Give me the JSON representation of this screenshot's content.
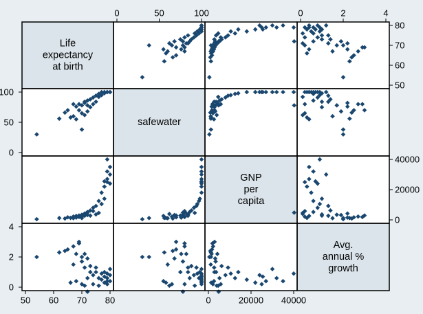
{
  "colors": {
    "background": "#e8eef2",
    "plot_background": "#ffffff",
    "diagonal_fill": "#dae4ea",
    "marker": "#1a476f",
    "frame": "#000000"
  },
  "chart_data": {
    "type": "scatter",
    "subtype": "scatter-matrix",
    "grid": false,
    "marker_shape": "diamond",
    "variables": [
      {
        "key": "lexp",
        "label": [
          "Life",
          "expectancy",
          "at birth"
        ],
        "range": [
          50,
          80
        ],
        "ticks": [
          50,
          60,
          70,
          80
        ],
        "tick_labels": [
          "50",
          "60",
          "70",
          "80"
        ]
      },
      {
        "key": "safewater",
        "label": [
          "safewater"
        ],
        "range": [
          0,
          100
        ],
        "ticks": [
          0,
          50,
          100
        ],
        "tick_labels": [
          "0",
          "50",
          "100"
        ]
      },
      {
        "key": "gnppc",
        "label": [
          "GNP",
          "per",
          "capita"
        ],
        "range": [
          0,
          40000
        ],
        "ticks": [
          0,
          20000,
          40000
        ],
        "tick_labels": [
          "0",
          "20000",
          "40000"
        ]
      },
      {
        "key": "popgrowth",
        "label": [
          "Avg.",
          "annual %",
          "growth"
        ],
        "range": [
          0,
          4
        ],
        "ticks": [
          0,
          2,
          4
        ],
        "tick_labels": [
          "0",
          "2",
          "4"
        ]
      }
    ],
    "axis_placement": {
      "top": [
        "safewater",
        "popgrowth"
      ],
      "bottom": [
        "lexp",
        "gnppc"
      ],
      "left": [
        "safewater",
        "popgrowth"
      ],
      "right": [
        "lexp",
        "gnppc"
      ]
    },
    "observations": [
      {
        "lexp": 54,
        "safewater": 30,
        "gnppc": 450,
        "popgrowth": 2.0
      },
      {
        "lexp": 62,
        "safewater": 56,
        "gnppc": 1200,
        "popgrowth": 2.3
      },
      {
        "lexp": 64,
        "safewater": 66,
        "gnppc": 900,
        "popgrowth": 2.4
      },
      {
        "lexp": 65,
        "safewater": 70,
        "gnppc": 1700,
        "popgrowth": 2.5
      },
      {
        "lexp": 66,
        "safewater": 58,
        "gnppc": 1300,
        "popgrowth": 0.3
      },
      {
        "lexp": 67,
        "safewater": 60,
        "gnppc": 1100,
        "popgrowth": 1.5
      },
      {
        "lexp": 67,
        "safewater": 80,
        "gnppc": 2200,
        "popgrowth": 2.7
      },
      {
        "lexp": 68,
        "safewater": 76,
        "gnppc": 1500,
        "popgrowth": 2.2
      },
      {
        "lexp": 68,
        "safewater": 55,
        "gnppc": 2600,
        "popgrowth": 0.4
      },
      {
        "lexp": 69,
        "safewater": 80,
        "gnppc": 1900,
        "popgrowth": 2.9
      },
      {
        "lexp": 69,
        "safewater": 70,
        "gnppc": 2900,
        "popgrowth": 3.0
      },
      {
        "lexp": 70,
        "safewater": 38,
        "gnppc": 1200,
        "popgrowth": 2.0
      },
      {
        "lexp": 70,
        "safewater": 78,
        "gnppc": 3400,
        "popgrowth": 1.7
      },
      {
        "lexp": 70,
        "safewater": 65,
        "gnppc": 2100,
        "popgrowth": 0.2
      },
      {
        "lexp": 71,
        "safewater": 84,
        "gnppc": 2700,
        "popgrowth": 1.3
      },
      {
        "lexp": 71,
        "safewater": 62,
        "gnppc": 3900,
        "popgrowth": 0.1
      },
      {
        "lexp": 71,
        "safewater": 82,
        "gnppc": 4200,
        "popgrowth": 2.2
      },
      {
        "lexp": 72,
        "safewater": 78,
        "gnppc": 4800,
        "popgrowth": -0.3
      },
      {
        "lexp": 72,
        "safewater": 86,
        "gnppc": 5200,
        "popgrowth": 0.6
      },
      {
        "lexp": 72,
        "safewater": 68,
        "gnppc": 3200,
        "popgrowth": 1.9
      },
      {
        "lexp": 73,
        "safewater": 88,
        "gnppc": 6200,
        "popgrowth": 1.4
      },
      {
        "lexp": 73,
        "safewater": 75,
        "gnppc": 2800,
        "popgrowth": 1.0
      },
      {
        "lexp": 74,
        "safewater": 80,
        "gnppc": 5800,
        "popgrowth": 0.2
      },
      {
        "lexp": 74,
        "safewater": 91,
        "gnppc": 8000,
        "popgrowth": 0.8
      },
      {
        "lexp": 75,
        "safewater": 94,
        "gnppc": 9200,
        "popgrowth": 1.3
      },
      {
        "lexp": 75,
        "safewater": 84,
        "gnppc": 3600,
        "popgrowth": 1.0
      },
      {
        "lexp": 76,
        "safewater": 97,
        "gnppc": 12500,
        "popgrowth": 0.6
      },
      {
        "lexp": 76,
        "safewater": 92,
        "gnppc": 4600,
        "popgrowth": 0.1
      },
      {
        "lexp": 77,
        "safewater": 100,
        "gnppc": 18000,
        "popgrowth": 0.5
      },
      {
        "lexp": 77,
        "safewater": 95,
        "gnppc": 10500,
        "popgrowth": 0.9
      },
      {
        "lexp": 78,
        "safewater": 100,
        "gnppc": 22000,
        "popgrowth": 0.3
      },
      {
        "lexp": 78,
        "safewater": 100,
        "gnppc": 25500,
        "popgrowth": 0.7
      },
      {
        "lexp": 78,
        "safewater": 98,
        "gnppc": 14000,
        "popgrowth": 1.0
      },
      {
        "lexp": 79,
        "safewater": 100,
        "gnppc": 25000,
        "popgrowth": 0.2
      },
      {
        "lexp": 79,
        "safewater": 100,
        "gnppc": 27000,
        "popgrowth": 0.4
      },
      {
        "lexp": 79,
        "safewater": 100,
        "gnppc": 32000,
        "popgrowth": 0.6
      },
      {
        "lexp": 79,
        "safewater": 100,
        "gnppc": 40000,
        "popgrowth": 0.9
      },
      {
        "lexp": 80,
        "safewater": 100,
        "gnppc": 35000,
        "popgrowth": 0.4
      },
      {
        "lexp": 80,
        "safewater": 100,
        "gnppc": 24000,
        "popgrowth": 0.8
      },
      {
        "lexp": 80,
        "safewater": 100,
        "gnppc": 30000,
        "popgrowth": 1.2
      }
    ]
  }
}
